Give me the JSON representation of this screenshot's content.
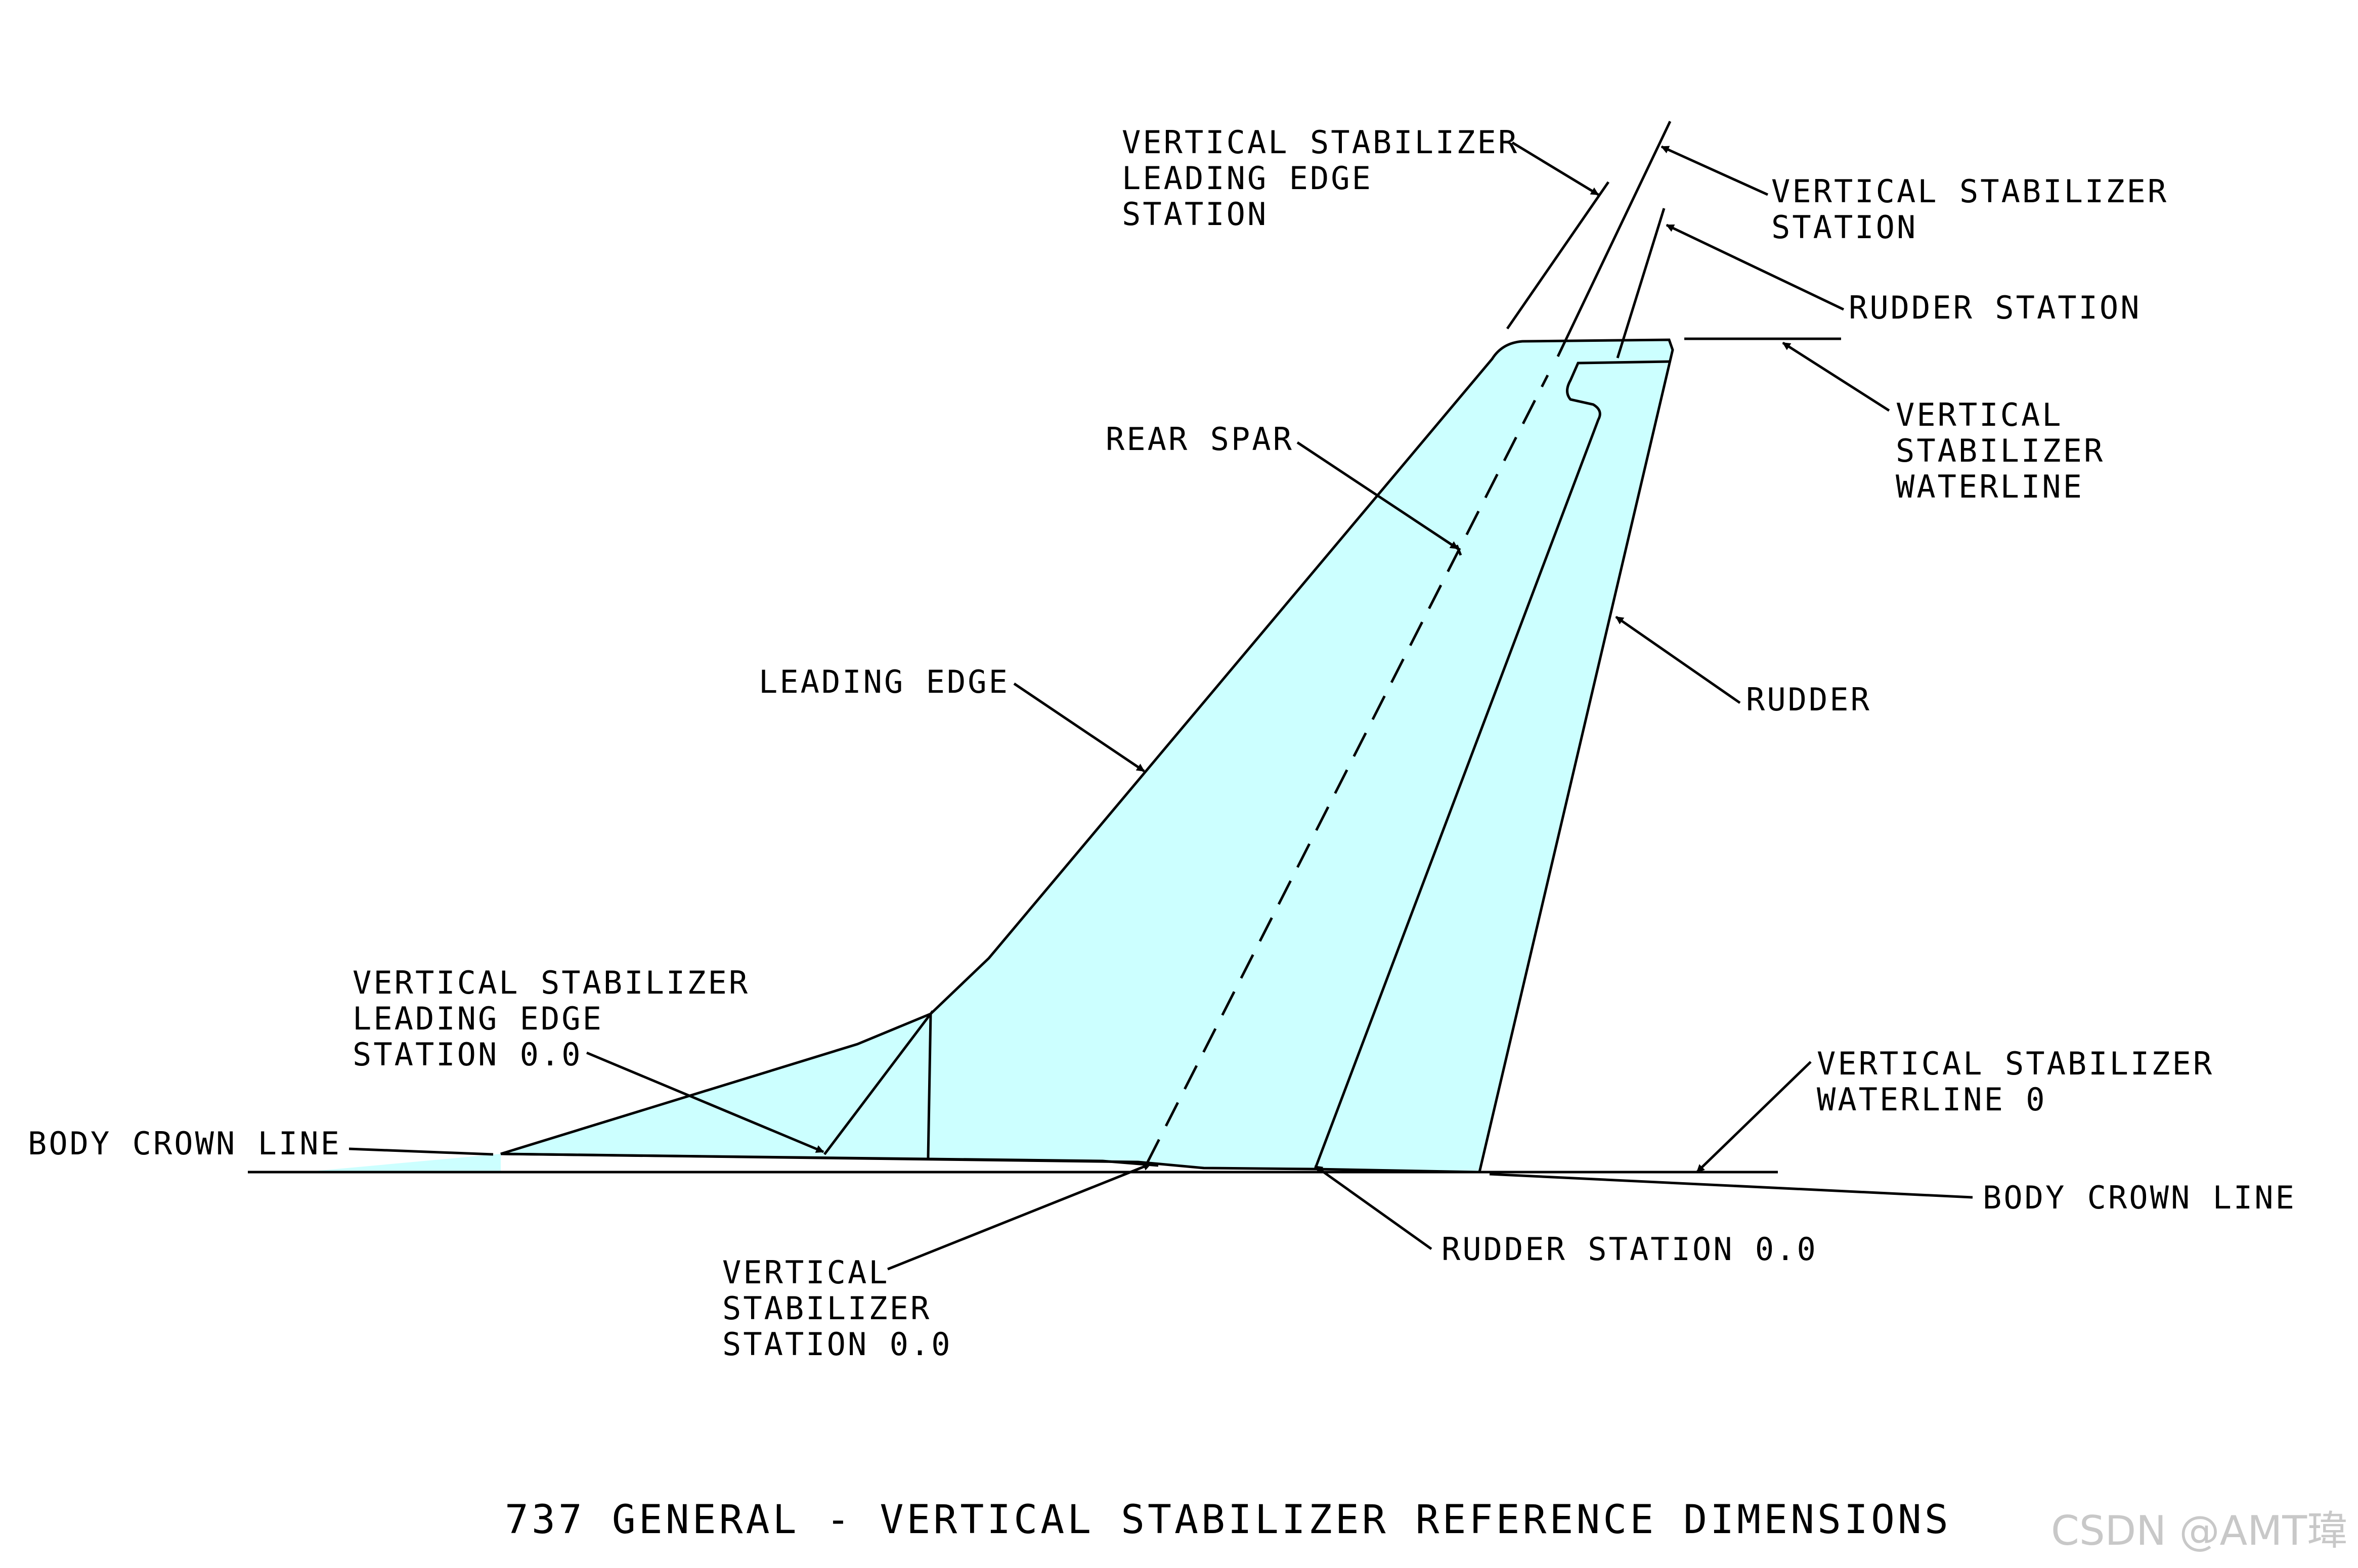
{
  "title": "737 GENERAL - VERTICAL STABILIZER REFERENCE DIMENSIONS",
  "watermark": "CSDN @AMT瑋",
  "colors": {
    "fin_fill": "#ccffff",
    "line": "#000000"
  },
  "labels": {
    "le_station": [
      "VERTICAL STABILIZER",
      "LEADING EDGE",
      "STATION"
    ],
    "vs_station": [
      "VERTICAL STABILIZER",
      "STATION"
    ],
    "rudder_station": "RUDDER STATION",
    "vs_waterline": [
      "VERTICAL",
      "STABILIZER",
      "WATERLINE"
    ],
    "rear_spar": "REAR SPAR",
    "leading_edge": "LEADING EDGE",
    "rudder": "RUDDER",
    "le_station_0": [
      "VERTICAL STABILIZER",
      "LEADING EDGE",
      "STATION 0.0"
    ],
    "vs_waterline_0": [
      "VERTICAL STABILIZER",
      "WATERLINE 0"
    ],
    "body_crown_left": "BODY CROWN LINE",
    "body_crown_right": "BODY CROWN LINE",
    "vs_station_0": [
      "VERTICAL",
      "STABILIZER",
      "STATION 0.0"
    ],
    "rudder_station_0": "RUDDER STATION 0.0"
  }
}
